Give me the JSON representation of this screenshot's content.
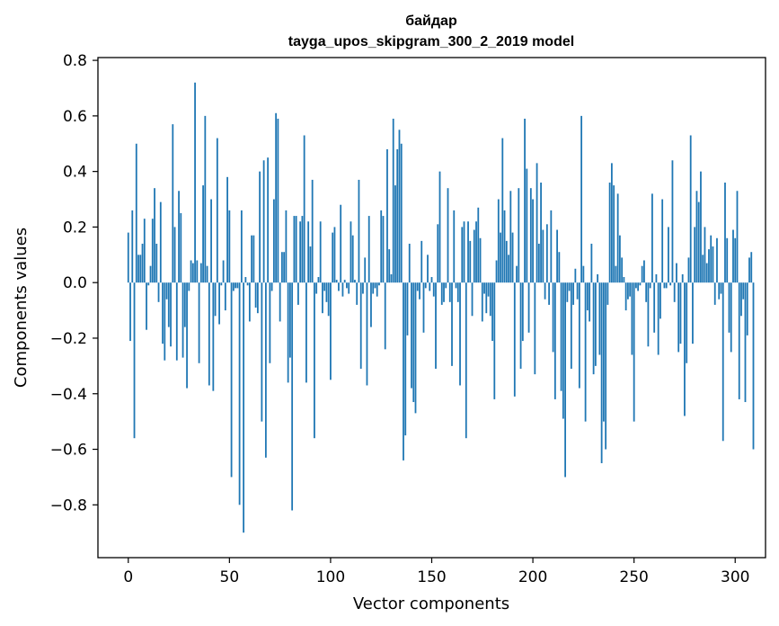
{
  "chart_data": {
    "type": "bar",
    "title": "байдар",
    "subtitle": "tayga_upos_skipgram_300_2_2019 model",
    "xlabel": "Vector components",
    "ylabel": "Components values",
    "xlim": [
      -15,
      315
    ],
    "ylim": [
      -0.99,
      0.81
    ],
    "xticks": [
      0,
      50,
      100,
      150,
      200,
      250,
      300
    ],
    "yticks": [
      -0.8,
      -0.6,
      -0.4,
      -0.2,
      0.0,
      0.2,
      0.4,
      0.6,
      0.8
    ],
    "xtick_labels": [
      "0",
      "50",
      "100",
      "150",
      "200",
      "250",
      "300"
    ],
    "ytick_labels": [
      "−0.8",
      "−0.6",
      "−0.4",
      "−0.2",
      "0.0",
      "0.2",
      "0.4",
      "0.6",
      "0.8"
    ],
    "grid": false,
    "bar_color": "#1f77b4",
    "values": [
      0.18,
      -0.21,
      0.26,
      -0.56,
      0.5,
      0.1,
      0.1,
      0.14,
      0.23,
      -0.17,
      -0.01,
      0.06,
      0.23,
      0.34,
      0.14,
      -0.07,
      0.29,
      -0.22,
      -0.28,
      -0.06,
      -0.16,
      -0.23,
      0.57,
      0.2,
      -0.28,
      0.33,
      0.25,
      -0.27,
      -0.16,
      -0.38,
      -0.03,
      0.08,
      0.07,
      0.72,
      0.08,
      -0.29,
      0.07,
      0.35,
      0.6,
      0.06,
      -0.37,
      0.3,
      -0.39,
      -0.12,
      0.52,
      -0.15,
      -0.01,
      0.08,
      -0.1,
      0.38,
      0.26,
      -0.7,
      -0.03,
      -0.02,
      -0.02,
      -0.8,
      0.26,
      -0.9,
      0.02,
      -0.01,
      -0.14,
      0.17,
      0.17,
      -0.09,
      -0.11,
      0.4,
      -0.5,
      0.44,
      -0.63,
      0.45,
      -0.29,
      -0.03,
      0.3,
      0.61,
      0.59,
      -0.14,
      0.11,
      0.11,
      0.26,
      -0.36,
      -0.27,
      -0.82,
      0.24,
      0.24,
      -0.08,
      0.22,
      0.24,
      0.53,
      -0.36,
      0.22,
      0.13,
      0.37,
      -0.56,
      -0.04,
      0.02,
      0.22,
      -0.11,
      -0.03,
      -0.07,
      -0.12,
      -0.35,
      0.18,
      0.2,
      0.01,
      -0.03,
      0.28,
      -0.05,
      0.01,
      -0.02,
      -0.04,
      0.22,
      0.17,
      0.01,
      -0.08,
      0.37,
      -0.31,
      -0.04,
      0.09,
      -0.37,
      0.24,
      -0.16,
      -0.04,
      -0.02,
      -0.05,
      -0.01,
      0.26,
      0.24,
      -0.24,
      0.48,
      0.12,
      0.03,
      0.59,
      0.35,
      0.48,
      0.55,
      0.5,
      -0.64,
      -0.55,
      -0.19,
      0.14,
      -0.38,
      -0.43,
      -0.47,
      -0.03,
      -0.06,
      0.15,
      -0.18,
      -0.02,
      0.1,
      -0.03,
      0.02,
      -0.05,
      -0.31,
      0.21,
      0.4,
      -0.08,
      -0.07,
      -0.02,
      0.34,
      -0.07,
      -0.3,
      0.26,
      -0.02,
      -0.07,
      -0.37,
      0.2,
      0.22,
      -0.56,
      0.22,
      0.15,
      -0.12,
      0.19,
      0.22,
      0.27,
      0.16,
      -0.14,
      -0.04,
      -0.11,
      -0.05,
      -0.12,
      -0.21,
      -0.42,
      0.08,
      0.3,
      0.18,
      0.52,
      0.26,
      0.15,
      0.1,
      0.33,
      0.18,
      -0.41,
      0.06,
      0.34,
      -0.31,
      -0.21,
      0.59,
      0.41,
      -0.18,
      0.34,
      0.3,
      -0.33,
      0.43,
      0.14,
      0.36,
      0.19,
      -0.06,
      0.21,
      -0.08,
      0.26,
      -0.25,
      -0.42,
      0.19,
      0.11,
      -0.39,
      -0.49,
      -0.7,
      -0.07,
      -0.03,
      -0.31,
      -0.08,
      0.05,
      -0.06,
      -0.38,
      0.6,
      0.06,
      -0.5,
      -0.1,
      -0.14,
      0.14,
      -0.33,
      -0.3,
      0.03,
      -0.26,
      -0.65,
      -0.5,
      -0.6,
      -0.08,
      0.36,
      0.43,
      0.35,
      0.06,
      0.32,
      0.17,
      0.09,
      0.02,
      -0.1,
      -0.06,
      -0.05,
      -0.26,
      -0.5,
      -0.02,
      -0.03,
      -0.01,
      0.06,
      0.08,
      -0.07,
      -0.23,
      -0.02,
      0.32,
      -0.18,
      0.03,
      -0.26,
      -0.13,
      0.3,
      -0.02,
      -0.02,
      0.2,
      -0.01,
      0.44,
      -0.07,
      0.07,
      -0.25,
      -0.22,
      0.03,
      -0.48,
      -0.29,
      0.09,
      0.53,
      -0.22,
      0.2,
      0.33,
      0.29,
      0.4,
      0.1,
      0.2,
      0.07,
      0.12,
      0.17,
      0.13,
      -0.08,
      0.16,
      -0.06,
      -0.04,
      -0.57,
      0.36,
      0.16,
      -0.18,
      -0.25,
      0.19,
      0.16,
      0.33,
      -0.42,
      -0.12,
      -0.06,
      -0.43,
      -0.19,
      0.09,
      0.11,
      -0.6
    ]
  }
}
